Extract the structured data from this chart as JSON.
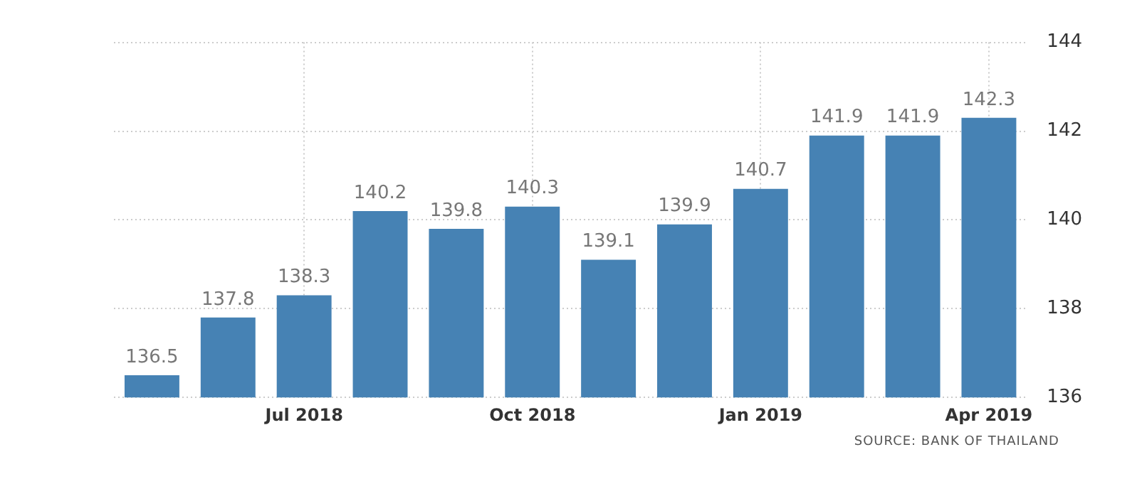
{
  "chart_data": {
    "type": "bar",
    "categories": [
      null,
      null,
      "Jul 2018",
      null,
      null,
      "Oct 2018",
      null,
      null,
      "Jan 2019",
      null,
      null,
      "Apr 2019"
    ],
    "values": [
      136.5,
      137.8,
      138.3,
      140.2,
      139.8,
      140.3,
      139.1,
      139.9,
      140.7,
      141.9,
      141.9,
      142.3
    ],
    "color": "#4682b4",
    "ylim": [
      136,
      144
    ],
    "yticks": [
      136,
      138,
      140,
      142,
      144
    ],
    "grid": true,
    "data_labels": true,
    "annotations": [
      "SOURCE: BANK OF THAILAND"
    ]
  }
}
